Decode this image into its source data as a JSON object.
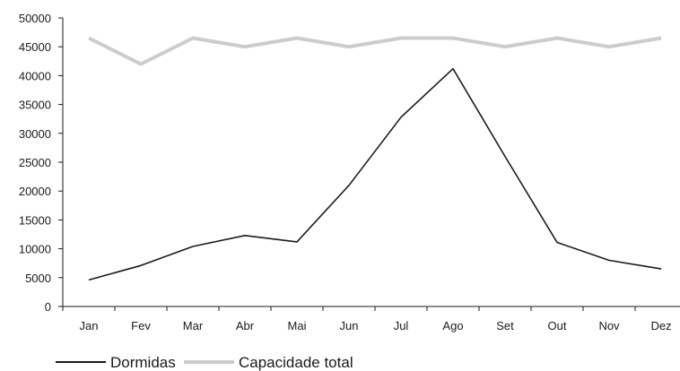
{
  "chart_data": {
    "type": "line",
    "categories": [
      "Jan",
      "Fev",
      "Mar",
      "Abr",
      "Mai",
      "Jun",
      "Jul",
      "Ago",
      "Set",
      "Out",
      "Nov",
      "Dez"
    ],
    "series": [
      {
        "name": "Dormidas",
        "color": "#1a1a1a",
        "values": [
          4600,
          7100,
          10400,
          12300,
          11200,
          21000,
          32800,
          41200,
          26000,
          11100,
          8000,
          6500
        ]
      },
      {
        "name": "Capacidade total",
        "color": "#cccccc",
        "values": [
          46500,
          42000,
          46500,
          45000,
          46500,
          45000,
          46500,
          46500,
          45000,
          46500,
          45000,
          46500
        ]
      }
    ],
    "yticks": [
      "0",
      "5000",
      "10000",
      "15000",
      "20000",
      "25000",
      "30000",
      "35000",
      "40000",
      "45000",
      "50000"
    ],
    "ylim": [
      0,
      50000
    ],
    "title": "",
    "xlabel": "",
    "ylabel": "",
    "grid": false,
    "legend_position": "bottom-left"
  }
}
